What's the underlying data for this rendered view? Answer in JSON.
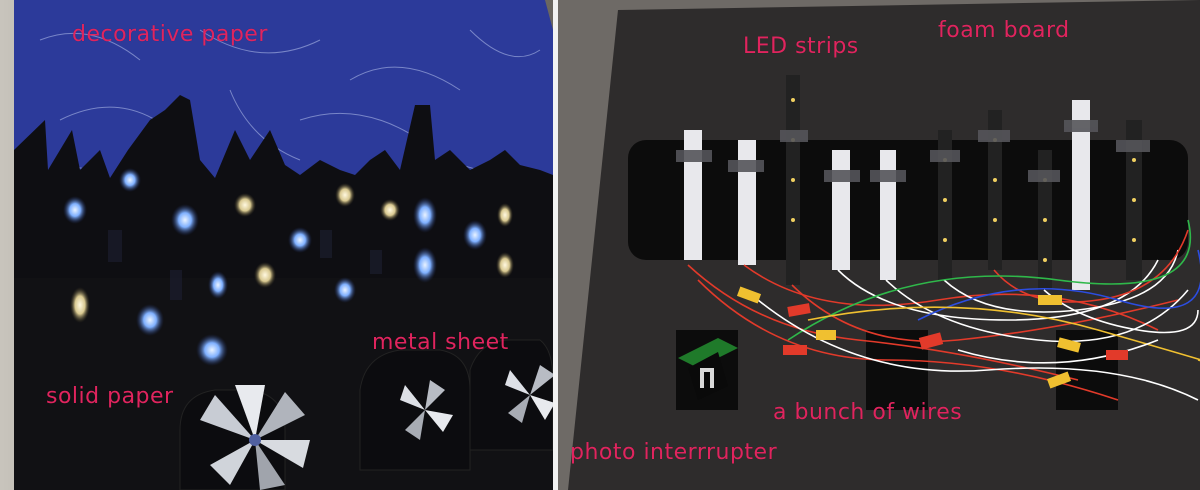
{
  "labels": {
    "decorative_paper": "decorative paper",
    "solid_paper": "solid paper",
    "metal_sheet": "metal sheet",
    "led_strips": "LED strips",
    "foam_board": "foam board",
    "bunch_of_wires": "a bunch of wires",
    "photo_interrupter": "photo interrrupter"
  },
  "colors": {
    "label": "#e0245e",
    "sky": "#2c3a9a",
    "window_blue": "#7fb0ff",
    "window_warm": "#ffe8a0",
    "foam": "#3b3836",
    "wire_red": "#e23a2a",
    "wire_yellow": "#f0c030",
    "wire_green": "#2fb84a",
    "wire_blue": "#2c4de0"
  }
}
